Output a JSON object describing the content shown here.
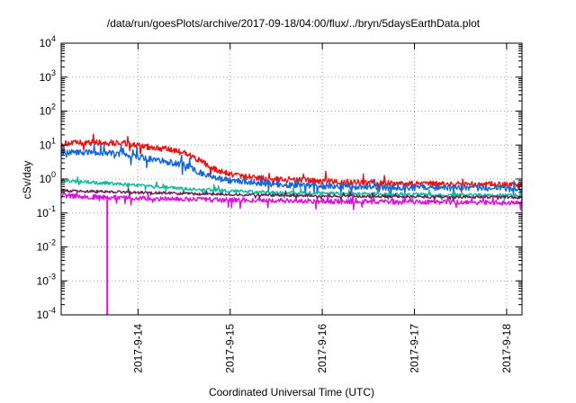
{
  "chart_data": {
    "type": "line",
    "title": "/data/run/goesPlots/archive/2017-09-18/04:00/flux/../bryn/5daysEarthData.plot",
    "xlabel": "Coordinated Universal Time (UTC)",
    "ylabel": "cSv/day",
    "y_scale": "log",
    "ylim": [
      0.0001,
      10000
    ],
    "xlim": [
      "2017-09-13T04:00",
      "2017-09-18T04:00"
    ],
    "grid": true,
    "y_ticks": [
      {
        "value": 0.0001,
        "base": "10",
        "exp": "-4"
      },
      {
        "value": 0.001,
        "base": "10",
        "exp": "-3"
      },
      {
        "value": 0.01,
        "base": "10",
        "exp": "-2"
      },
      {
        "value": 0.1,
        "base": "10",
        "exp": "-1"
      },
      {
        "value": 1,
        "base": "10",
        "exp": "0"
      },
      {
        "value": 10,
        "base": "10",
        "exp": "1"
      },
      {
        "value": 100,
        "base": "10",
        "exp": "2"
      },
      {
        "value": 1000,
        "base": "10",
        "exp": "3"
      },
      {
        "value": 10000,
        "base": "10",
        "exp": "4"
      }
    ],
    "x_ticks": [
      {
        "value": "2017-09-14T00:00",
        "label": "2017-9-14"
      },
      {
        "value": "2017-09-15T00:00",
        "label": "2017-9-15"
      },
      {
        "value": "2017-09-16T00:00",
        "label": "2017-9-16"
      },
      {
        "value": "2017-09-17T00:00",
        "label": "2017-9-17"
      },
      {
        "value": "2017-09-18T00:00",
        "label": "2017-9-18"
      }
    ],
    "series": [
      {
        "color": "#ee1111",
        "noise": 0.09,
        "x": [
          "2017-09-13T04:00",
          "2017-09-13T12:00",
          "2017-09-13T20:00",
          "2017-09-14T00:00",
          "2017-09-14T06:00",
          "2017-09-14T12:00",
          "2017-09-14T16:00",
          "2017-09-14T20:00",
          "2017-09-15T00:00",
          "2017-09-15T06:00",
          "2017-09-15T12:00",
          "2017-09-16T00:00",
          "2017-09-16T12:00",
          "2017-09-17T00:00",
          "2017-09-17T12:00",
          "2017-09-18T00:00",
          "2017-09-18T04:00"
        ],
        "y": [
          11,
          12,
          11.5,
          9.5,
          8,
          6,
          3.5,
          1.9,
          1.4,
          1.1,
          1.0,
          0.85,
          0.78,
          0.72,
          0.7,
          0.68,
          0.65
        ]
      },
      {
        "color": "#1166dd",
        "noise": 0.09,
        "x": [
          "2017-09-13T04:00",
          "2017-09-13T12:00",
          "2017-09-13T20:00",
          "2017-09-14T00:00",
          "2017-09-14T06:00",
          "2017-09-14T12:00",
          "2017-09-14T16:00",
          "2017-09-14T20:00",
          "2017-09-15T00:00",
          "2017-09-15T06:00",
          "2017-09-15T12:00",
          "2017-09-16T00:00",
          "2017-09-16T12:00",
          "2017-09-17T00:00",
          "2017-09-17T12:00",
          "2017-09-18T00:00",
          "2017-09-18T04:00"
        ],
        "y": [
          6.2,
          6.0,
          5.5,
          4.5,
          3.5,
          2.6,
          1.6,
          1.1,
          0.9,
          0.8,
          0.7,
          0.62,
          0.58,
          0.55,
          0.55,
          0.52,
          0.5
        ]
      },
      {
        "color": "#11bb99",
        "noise": 0.05,
        "x": [
          "2017-09-13T04:00",
          "2017-09-13T12:00",
          "2017-09-14T00:00",
          "2017-09-14T12:00",
          "2017-09-15T00:00",
          "2017-09-15T12:00",
          "2017-09-16T00:00",
          "2017-09-17T00:00",
          "2017-09-18T00:00",
          "2017-09-18T04:00"
        ],
        "y": [
          0.9,
          0.8,
          0.65,
          0.52,
          0.44,
          0.4,
          0.38,
          0.35,
          0.33,
          0.33
        ]
      },
      {
        "color": "#662255",
        "noise": 0.04,
        "x": [
          "2017-09-13T04:00",
          "2017-09-14T00:00",
          "2017-09-15T00:00",
          "2017-09-16T00:00",
          "2017-09-17T00:00",
          "2017-09-18T00:00",
          "2017-09-18T04:00"
        ],
        "y": [
          0.45,
          0.4,
          0.35,
          0.32,
          0.3,
          0.29,
          0.28
        ]
      },
      {
        "color": "#dd11dd",
        "noise": 0.07,
        "x": [
          "2017-09-13T04:00",
          "2017-09-14T00:00",
          "2017-09-15T00:00",
          "2017-09-16T00:00",
          "2017-09-17T00:00",
          "2017-09-18T00:00",
          "2017-09-18T04:00"
        ],
        "y": [
          0.32,
          0.27,
          0.24,
          0.22,
          0.21,
          0.2,
          0.2
        ],
        "dropout": {
          "x": "2017-09-13T16:00",
          "y": 0.0001
        }
      }
    ]
  }
}
